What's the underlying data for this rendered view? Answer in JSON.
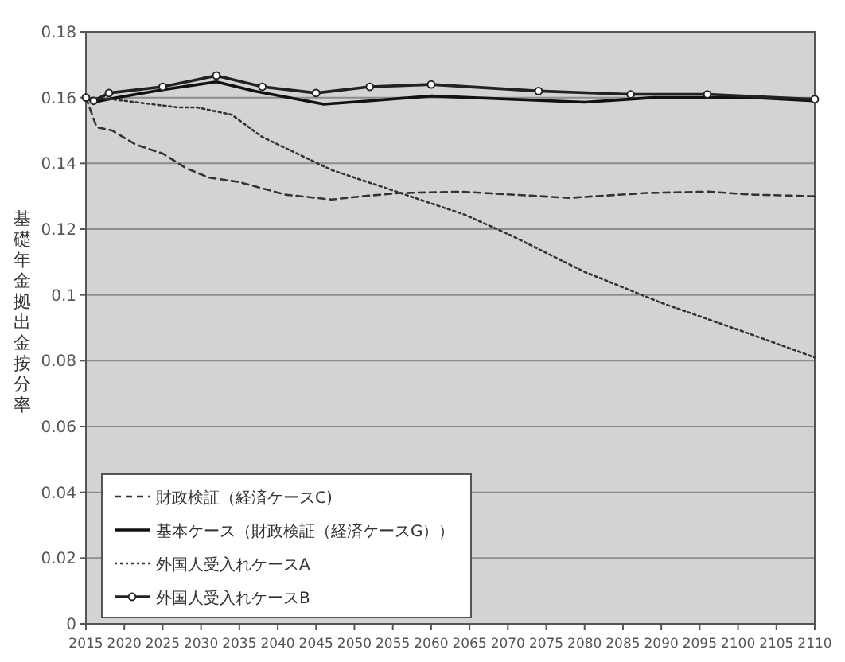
{
  "chart_data": {
    "type": "line",
    "ylabel": "基礎年金拠出金按分率",
    "xlim": [
      2015,
      2110
    ],
    "xticks": [
      2015,
      2020,
      2025,
      2030,
      2035,
      2040,
      2045,
      2050,
      2055,
      2060,
      2065,
      2070,
      2075,
      2080,
      2085,
      2090,
      2095,
      2100,
      2105,
      2110
    ],
    "ylim": [
      0,
      0.18
    ],
    "yticks": [
      0,
      0.02,
      0.04,
      0.06,
      0.08,
      0.1,
      0.12,
      0.14,
      0.16,
      0.18
    ],
    "grid": "y",
    "legend": "bottom left",
    "series": [
      {
        "name": "財政検証（経済ケースC)",
        "color": "#333333",
        "line_style": "dashed",
        "marker": "none",
        "x": [
          2015,
          2016.4,
          2018.4,
          2021.5,
          2025,
          2028,
          2031,
          2035,
          2041,
          2047,
          2051,
          2056,
          2064,
          2078,
          2088,
          2096,
          2102,
          2110
        ],
        "values": [
          0.16,
          0.151,
          0.15,
          0.1457,
          0.143,
          0.1386,
          0.1357,
          0.1343,
          0.1305,
          0.129,
          0.13,
          0.131,
          0.1314,
          0.1295,
          0.131,
          0.1314,
          0.1305,
          0.13
        ]
      },
      {
        "name": "基本ケース（財政検証（経済ケースG））",
        "color": "#111111",
        "line_style": "solid",
        "marker": "none",
        "x": [
          2015,
          2016,
          2019,
          2025,
          2032,
          2037,
          2046,
          2052,
          2060,
          2080,
          2089,
          2102,
          2110
        ],
        "values": [
          0.16,
          0.1586,
          0.16,
          0.1624,
          0.1648,
          0.162,
          0.158,
          0.159,
          0.1605,
          0.1586,
          0.16,
          0.16,
          0.159
        ]
      },
      {
        "name": "外国人受入れケースA",
        "color": "#333333",
        "line_style": "dotted",
        "marker": "none",
        "x": [
          2015,
          2018.4,
          2027,
          2029.5,
          2034,
          2038,
          2047,
          2056,
          2064.5,
          2070.5,
          2080,
          2090,
          2101,
          2110
        ],
        "values": [
          0.16,
          0.1595,
          0.157,
          0.157,
          0.1548,
          0.148,
          0.138,
          0.131,
          0.1243,
          0.118,
          0.107,
          0.0976,
          0.0886,
          0.081
        ]
      },
      {
        "name": "外国人受入れケースB",
        "color": "#222222",
        "line_style": "solid",
        "marker": "circle",
        "x": [
          2015,
          2016,
          2018,
          2025,
          2032,
          2038,
          2045,
          2052,
          2060,
          2074,
          2086,
          2096,
          2110
        ],
        "values": [
          0.16,
          0.159,
          0.1614,
          0.1633,
          0.1667,
          0.1633,
          0.1614,
          0.1633,
          0.164,
          0.162,
          0.161,
          0.161,
          0.1595
        ]
      }
    ]
  }
}
